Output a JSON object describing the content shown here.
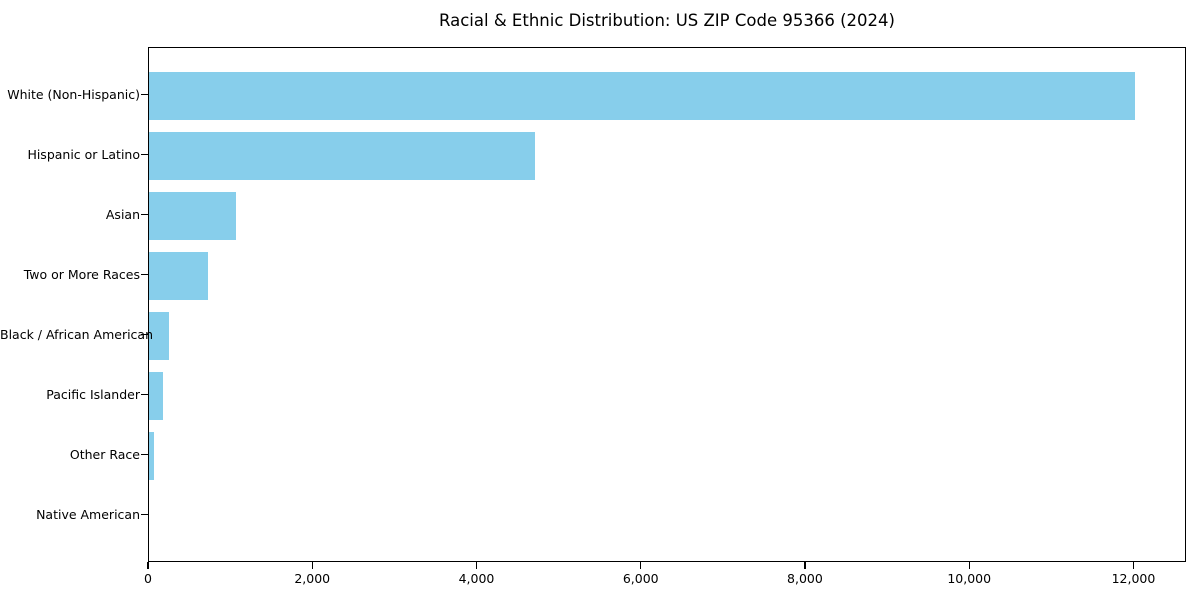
{
  "chart_data": {
    "type": "bar",
    "orientation": "horizontal",
    "title": "Racial & Ethnic Distribution: US ZIP Code 95366 (2024)",
    "categories": [
      "White (Non-Hispanic)",
      "Hispanic or Latino",
      "Asian",
      "Two or More Races",
      "Black / African American",
      "Pacific Islander",
      "Other Race",
      "Native American"
    ],
    "values": [
      12030,
      4710,
      1060,
      720,
      240,
      170,
      55,
      0
    ],
    "xlabel": "",
    "ylabel": "",
    "xlim": [
      0,
      12640
    ],
    "x_ticks": [
      0,
      2000,
      4000,
      6000,
      8000,
      10000,
      12000
    ],
    "x_tick_labels": [
      "0",
      "2,000",
      "4,000",
      "6,000",
      "8,000",
      "10,000",
      "12,000"
    ],
    "bar_color": "#87CEEB",
    "axis_color": "#000000",
    "background_color": "#ffffff",
    "grid": false,
    "legend": null
  }
}
